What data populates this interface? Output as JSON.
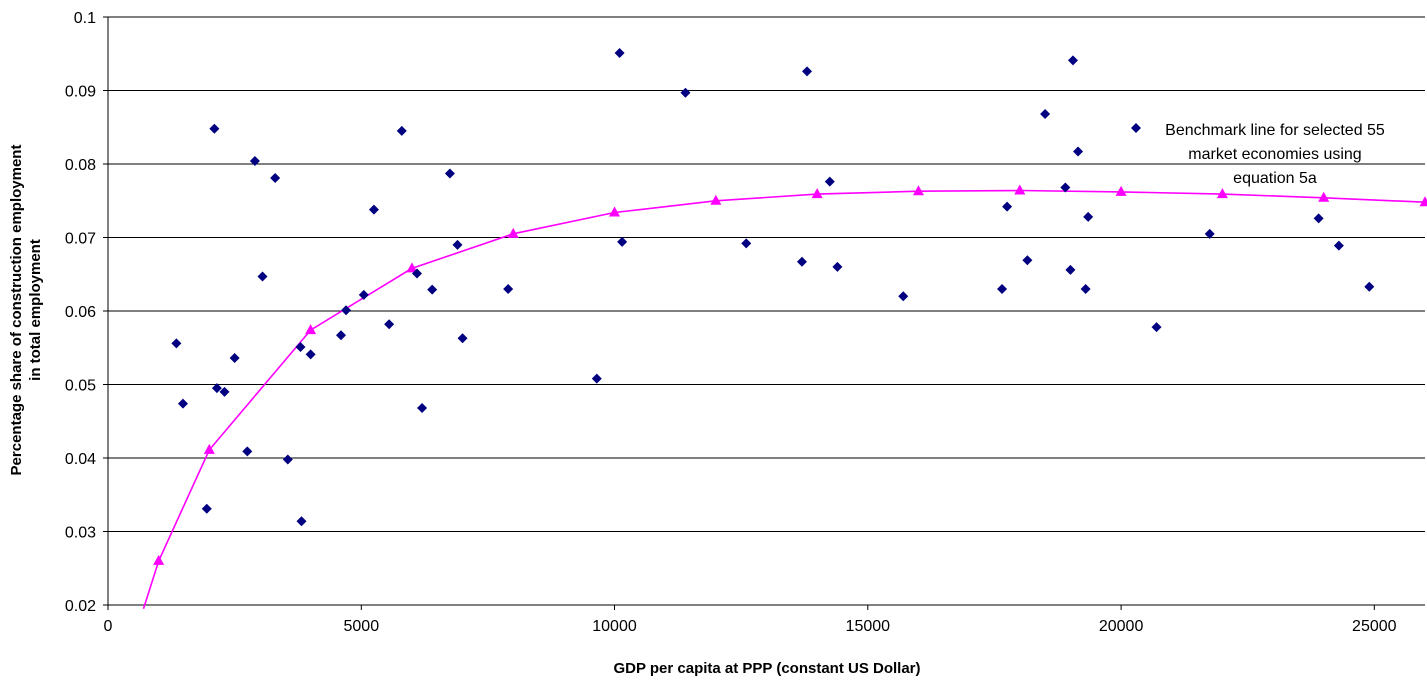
{
  "chart_data": {
    "type": "scatter",
    "title": "",
    "xlabel": "GDP per capita at PPP (constant US Dollar)",
    "ylabel_lines": [
      "Percentage share of construction employment",
      "in total employment"
    ],
    "xlim": [
      0,
      26000
    ],
    "ylim": [
      0.02,
      0.1
    ],
    "x_ticks": [
      0,
      5000,
      10000,
      15000,
      20000,
      25000
    ],
    "y_ticks": [
      0.02,
      0.03,
      0.04,
      0.05,
      0.06,
      0.07,
      0.08,
      0.09,
      0.1
    ],
    "x_tick_labels": [
      "0",
      "5000",
      "10000",
      "15000",
      "20000",
      "25000"
    ],
    "y_tick_labels": [
      "0.02",
      "0.03",
      "0.04",
      "0.05",
      "0.06",
      "0.07",
      "0.08",
      "0.09",
      "0.1"
    ],
    "grid": "horizontal",
    "legend_position": "top-right inside",
    "series": [
      {
        "name": "Benchmark line for selected 55 market economies using equation 5a",
        "legend_lines": [
          "Benchmark line for selected 55",
          "market economies using",
          "equation 5a"
        ],
        "kind": "scatter",
        "marker": "diamond",
        "color": "#000080",
        "points": [
          [
            1350,
            0.0556
          ],
          [
            1480,
            0.0474
          ],
          [
            1950,
            0.0331
          ],
          [
            2100,
            0.0848
          ],
          [
            2150,
            0.0495
          ],
          [
            2300,
            0.049
          ],
          [
            2500,
            0.0536
          ],
          [
            2750,
            0.0409
          ],
          [
            2900,
            0.0804
          ],
          [
            3050,
            0.0647
          ],
          [
            3300,
            0.0781
          ],
          [
            3550,
            0.0398
          ],
          [
            3800,
            0.0551
          ],
          [
            3820,
            0.0314
          ],
          [
            4000,
            0.0541
          ],
          [
            4600,
            0.0567
          ],
          [
            4700,
            0.0601
          ],
          [
            5050,
            0.0622
          ],
          [
            5250,
            0.0738
          ],
          [
            5550,
            0.0582
          ],
          [
            5800,
            0.0845
          ],
          [
            6100,
            0.0651
          ],
          [
            6200,
            0.0468
          ],
          [
            6400,
            0.0629
          ],
          [
            6750,
            0.0787
          ],
          [
            6900,
            0.069
          ],
          [
            7000,
            0.0563
          ],
          [
            7900,
            0.063
          ],
          [
            9650,
            0.0508
          ],
          [
            10100,
            0.0951
          ],
          [
            10150,
            0.0694
          ],
          [
            11400,
            0.0897
          ],
          [
            12600,
            0.0692
          ],
          [
            13700,
            0.0667
          ],
          [
            13800,
            0.0926
          ],
          [
            14250,
            0.0776
          ],
          [
            14400,
            0.066
          ],
          [
            15700,
            0.062
          ],
          [
            17650,
            0.063
          ],
          [
            17750,
            0.0742
          ],
          [
            18150,
            0.0669
          ],
          [
            18500,
            0.0868
          ],
          [
            18900,
            0.0768
          ],
          [
            19000,
            0.0656
          ],
          [
            19050,
            0.0941
          ],
          [
            19150,
            0.0817
          ],
          [
            19300,
            0.063
          ],
          [
            19350,
            0.0728
          ],
          [
            20700,
            0.0578
          ],
          [
            21750,
            0.0705
          ],
          [
            23900,
            0.0726
          ],
          [
            24300,
            0.0689
          ],
          [
            24900,
            0.0633
          ]
        ]
      },
      {
        "name": "",
        "kind": "line",
        "marker": "triangle",
        "color": "#ff00ff",
        "points": [
          [
            1000,
            0.026
          ],
          [
            2000,
            0.0411
          ],
          [
            4000,
            0.0574
          ],
          [
            6000,
            0.0658
          ],
          [
            8000,
            0.0705
          ],
          [
            10000,
            0.0734
          ],
          [
            12000,
            0.075
          ],
          [
            14000,
            0.0759
          ],
          [
            16000,
            0.0763
          ],
          [
            18000,
            0.0764
          ],
          [
            20000,
            0.0762
          ],
          [
            22000,
            0.0759
          ],
          [
            24000,
            0.0754
          ],
          [
            26000,
            0.0748
          ]
        ],
        "curve_start": [
          700,
          0.0195
        ]
      }
    ]
  }
}
